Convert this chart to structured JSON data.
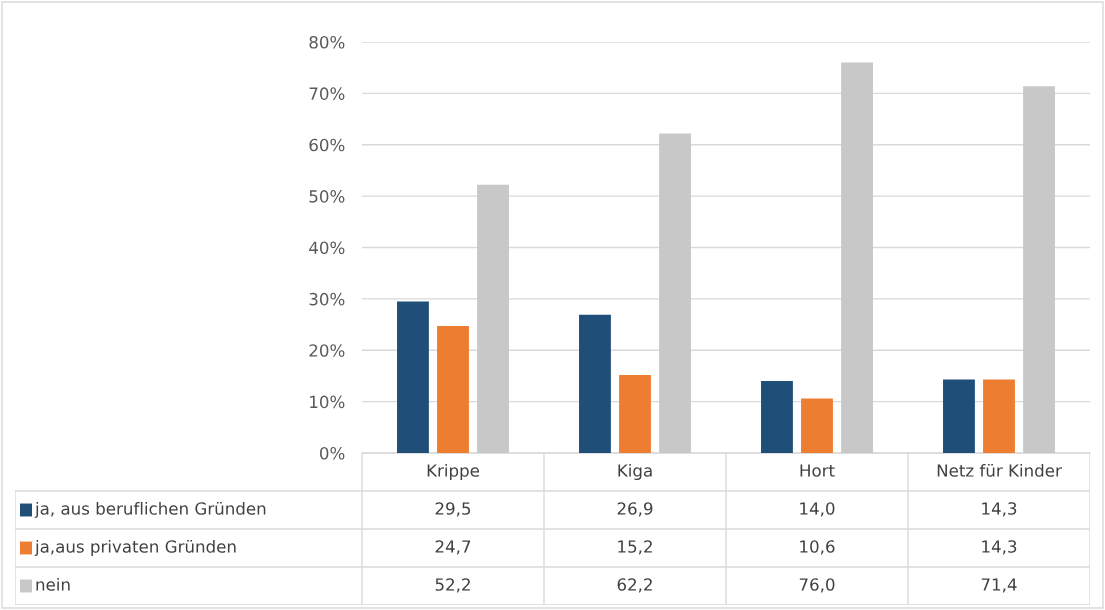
{
  "chart_data": {
    "type": "bar",
    "categories": [
      "Krippe",
      "Kiga",
      "Hort",
      "Netz für Kinder"
    ],
    "series": [
      {
        "name": "ja, aus beruflichen Gründen",
        "color": "#1f4e79",
        "values": [
          29.5,
          26.9,
          14.0,
          14.3
        ],
        "value_labels": [
          "29,5",
          "26,9",
          "14,0",
          "14,3"
        ]
      },
      {
        "name": "ja,aus privaten Gründen",
        "color": "#ed7d31",
        "values": [
          24.7,
          15.2,
          10.6,
          14.3
        ],
        "value_labels": [
          "24,7",
          "15,2",
          "10,6",
          "14,3"
        ]
      },
      {
        "name": "nein",
        "color": "#c8c8c8",
        "values": [
          52.2,
          62.2,
          76.0,
          71.4
        ],
        "value_labels": [
          "52,2",
          "62,2",
          "76,0",
          "71,4"
        ]
      }
    ],
    "ylim": [
      0,
      80
    ],
    "yticks": [
      {
        "value": 0,
        "label": "0%"
      },
      {
        "value": 10,
        "label": "10%"
      },
      {
        "value": 20,
        "label": "20%"
      },
      {
        "value": 30,
        "label": "30%"
      },
      {
        "value": 40,
        "label": "40%"
      },
      {
        "value": 50,
        "label": "50%"
      },
      {
        "value": 60,
        "label": "60%"
      },
      {
        "value": 70,
        "label": "70%"
      },
      {
        "value": 80,
        "label": "80%"
      }
    ],
    "grid": "y",
    "legend": "bottom left"
  }
}
